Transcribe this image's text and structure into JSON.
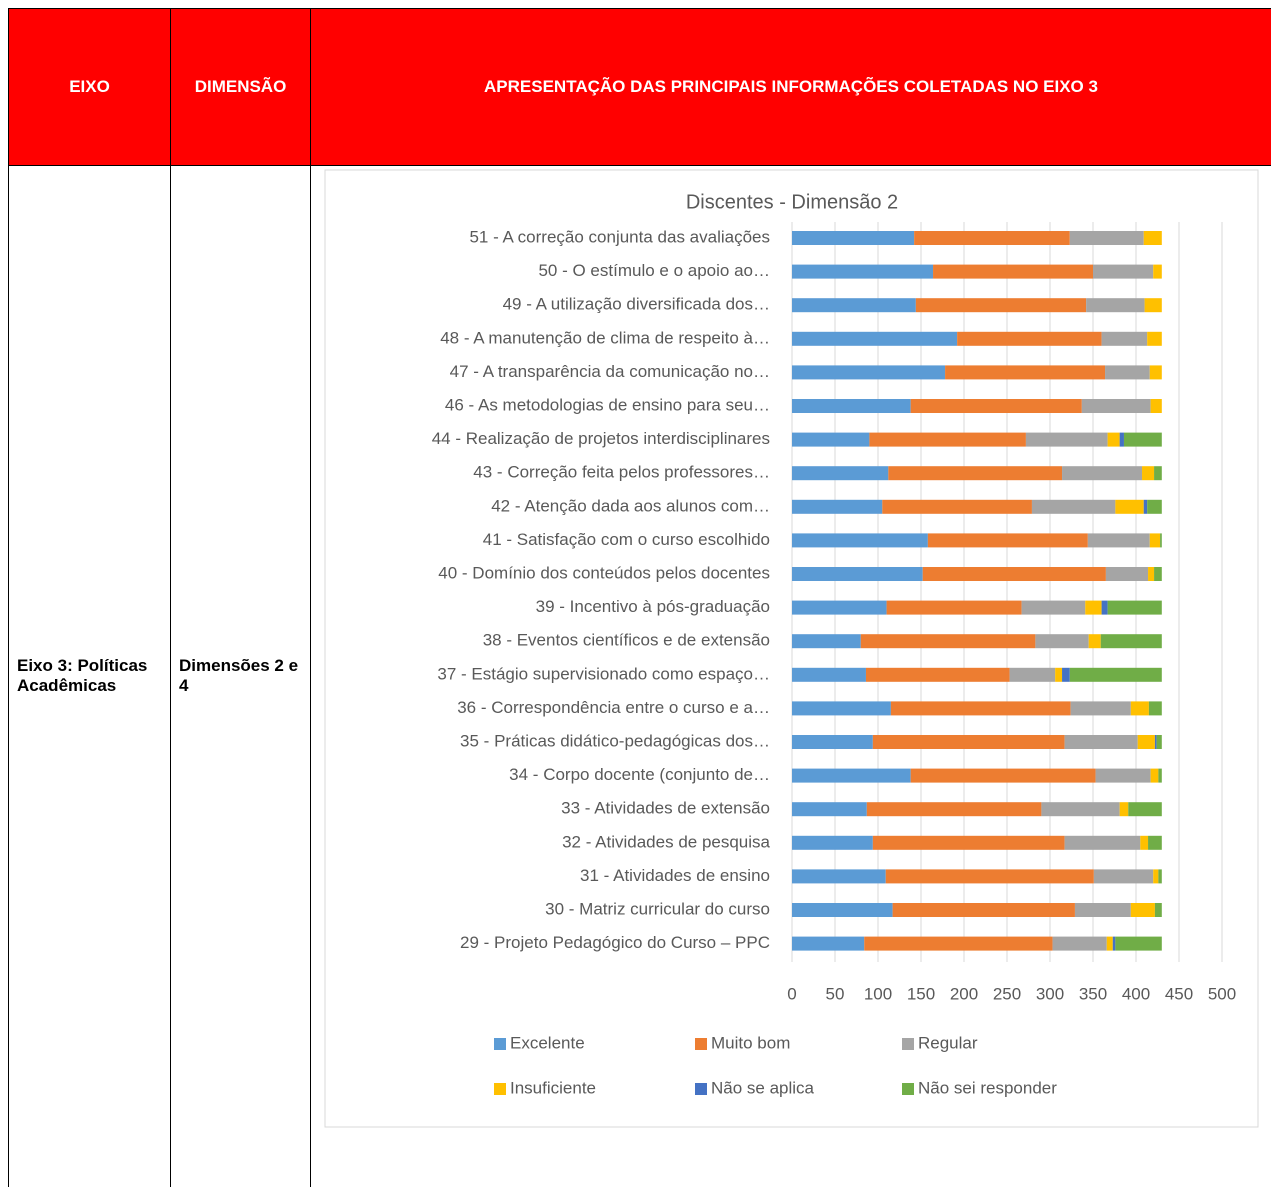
{
  "table": {
    "header": [
      "EIXO",
      "DIMENSÃO",
      "APRESENTAÇÃO DAS PRINCIPAIS INFORMAÇÕES COLETADAS NO EIXO 3"
    ],
    "rows": [
      [
        "Eixo 3: Políticas Acadêmicas",
        "Dimensões 2 e 4"
      ]
    ]
  },
  "chart_data": {
    "type": "stacked_bar_horizontal",
    "title": "Discentes - Dimensão 2",
    "categories": [
      "51 - A correção conjunta das avaliações",
      "50 - O estímulo e o apoio ao…",
      "49 - A utilização diversificada dos…",
      "48 - A manutenção de clima de respeito à…",
      "47 - A transparência da comunicação no…",
      "46 - As metodologias de ensino para seu…",
      "44 - Realização de projetos interdisciplinares",
      "43 - Correção feita pelos professores…",
      "42 - Atenção dada aos alunos com…",
      "41 - Satisfação com o curso escolhido",
      "40 - Domínio dos conteúdos pelos docentes",
      "39 - Incentivo à pós-graduação",
      "38 - Eventos científicos e de extensão",
      "37 - Estágio supervisionado como espaço…",
      "36 - Correspondência entre o curso e a…",
      "35 - Práticas didático-pedagógicas dos…",
      "34 - Corpo docente (conjunto de…",
      "33 - Atividades de extensão",
      "32 - Atividades de pesquisa",
      "31 - Atividades de ensino",
      "30 - Matriz curricular do curso",
      "29 - Projeto Pedagógico do Curso – PPC"
    ],
    "series": [
      {
        "name": "Excelente",
        "color": "#5b9bd5",
        "values": [
          142,
          164,
          144,
          192,
          178,
          138,
          90,
          112,
          105,
          158,
          152,
          110,
          80,
          86,
          115,
          94,
          138,
          87,
          94,
          109,
          117,
          84
        ]
      },
      {
        "name": "Muito bom",
        "color": "#ed7d31",
        "values": [
          181,
          186,
          198,
          168,
          186,
          199,
          182,
          202,
          174,
          186,
          213,
          157,
          203,
          167,
          209,
          223,
          215,
          203,
          223,
          242,
          212,
          219
        ]
      },
      {
        "name": "Regular",
        "color": "#a5a5a5",
        "values": [
          86,
          70,
          68,
          53,
          52,
          80,
          95,
          93,
          97,
          72,
          49,
          74,
          62,
          53,
          70,
          85,
          64,
          91,
          88,
          69,
          65,
          63
        ]
      },
      {
        "name": "Insuficiente",
        "color": "#ffc000",
        "values": [
          21,
          10,
          20,
          17,
          14,
          13,
          14,
          14,
          33,
          12,
          7,
          19,
          14,
          8,
          21,
          20,
          9,
          10,
          9,
          6,
          28,
          7
        ]
      },
      {
        "name": "Não se aplica",
        "color": "#4472c4",
        "values": [
          0,
          0,
          0,
          0,
          0,
          0,
          5,
          0,
          4,
          0,
          0,
          7,
          0,
          9,
          0,
          2,
          0,
          0,
          0,
          0,
          0,
          3
        ]
      },
      {
        "name": "Não sei responder",
        "color": "#70ad47",
        "values": [
          0,
          0,
          0,
          0,
          0,
          0,
          44,
          9,
          17,
          2,
          9,
          63,
          71,
          107,
          15,
          6,
          4,
          39,
          16,
          4,
          8,
          54
        ]
      }
    ],
    "xlim": [
      0,
      500
    ],
    "xticks": [
      0,
      50,
      100,
      150,
      200,
      250,
      300,
      350,
      400,
      450,
      500
    ],
    "grid": true,
    "legend": "bottom"
  }
}
